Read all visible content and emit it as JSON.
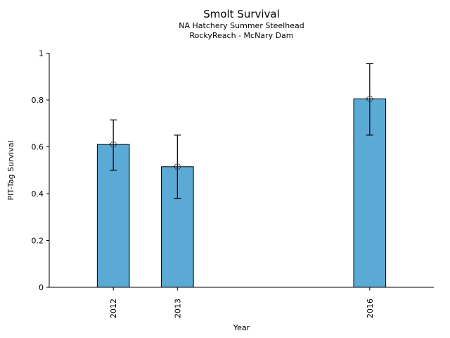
{
  "figure": {
    "title": "Smolt Survival",
    "subtitle1": "NA Hatchery Summer Steelhead",
    "subtitle2": "RockyReach - McNary Dam"
  },
  "chart_data": {
    "type": "bar",
    "title": "Smolt Survival",
    "subtitle1": "NA Hatchery Summer Steelhead",
    "subtitle2": "RockyReach - McNary Dam",
    "xlabel": "Year",
    "ylabel": "PIT-Tag Survival",
    "categories": [
      "2012",
      "2013",
      "2016"
    ],
    "x_numeric": [
      2012,
      2013,
      2016
    ],
    "values": [
      0.61,
      0.515,
      0.805
    ],
    "error_low": [
      0.5,
      0.38,
      0.65
    ],
    "error_high": [
      0.715,
      0.65,
      0.955
    ],
    "xlim": [
      2011,
      2017
    ],
    "ylim": [
      0,
      1
    ],
    "yticks": [
      0,
      0.2,
      0.4,
      0.6,
      0.8,
      1
    ],
    "ytick_labels": [
      "0",
      "0.2",
      "0.4",
      "0.6",
      "0.8",
      "1"
    ],
    "bar_width_years": 0.5,
    "bar_color": "#5BA9D5",
    "bar_edge_color": "#000000",
    "errorbar_color": "#000000",
    "marker": "open-circle",
    "marker_color": "#333333",
    "grid": false,
    "legend": null
  }
}
